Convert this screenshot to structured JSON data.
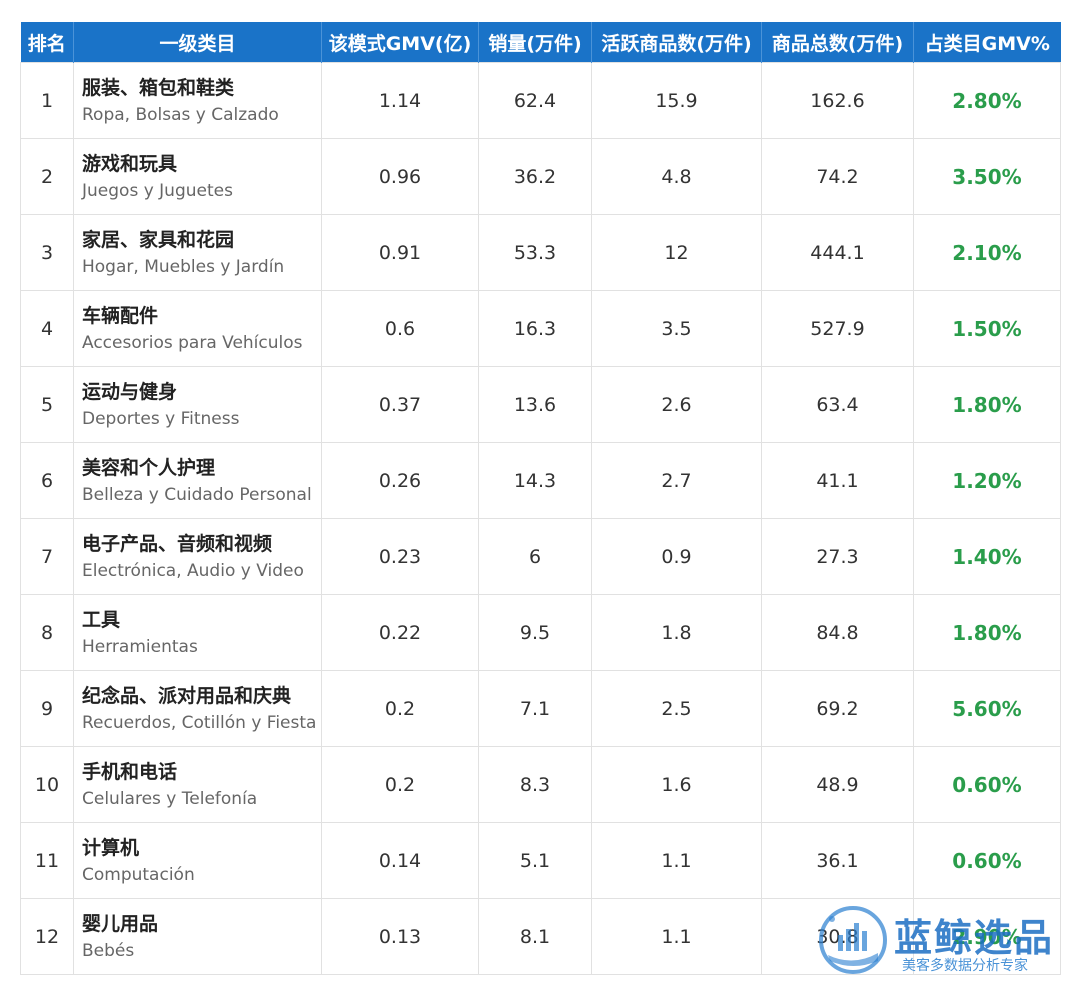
{
  "table": {
    "headers": [
      "排名",
      "一级类目",
      "该模式GMV(亿)",
      "销量(万件)",
      "活跃商品数(万件)",
      "商品总数(万件)",
      "占类目GMV%"
    ],
    "rows": [
      {
        "rank": "1",
        "zh": "服装、箱包和鞋类",
        "es": "Ropa, Bolsas y Calzado",
        "gmv": "1.14",
        "sales": "62.4",
        "active": "15.9",
        "total": "162.6",
        "pct": "2.80%"
      },
      {
        "rank": "2",
        "zh": "游戏和玩具",
        "es": "Juegos y Juguetes",
        "gmv": "0.96",
        "sales": "36.2",
        "active": "4.8",
        "total": "74.2",
        "pct": "3.50%"
      },
      {
        "rank": "3",
        "zh": "家居、家具和花园",
        "es": "Hogar, Muebles y Jardín",
        "gmv": "0.91",
        "sales": "53.3",
        "active": "12",
        "total": "444.1",
        "pct": "2.10%"
      },
      {
        "rank": "4",
        "zh": "车辆配件",
        "es": "Accesorios para Vehículos",
        "gmv": "0.6",
        "sales": "16.3",
        "active": "3.5",
        "total": "527.9",
        "pct": "1.50%"
      },
      {
        "rank": "5",
        "zh": "运动与健身",
        "es": "Deportes y Fitness",
        "gmv": "0.37",
        "sales": "13.6",
        "active": "2.6",
        "total": "63.4",
        "pct": "1.80%"
      },
      {
        "rank": "6",
        "zh": "美容和个人护理",
        "es": "Belleza y Cuidado Personal",
        "gmv": "0.26",
        "sales": "14.3",
        "active": "2.7",
        "total": "41.1",
        "pct": "1.20%"
      },
      {
        "rank": "7",
        "zh": "电子产品、音频和视频",
        "es": "Electrónica, Audio y Video",
        "gmv": "0.23",
        "sales": "6",
        "active": "0.9",
        "total": "27.3",
        "pct": "1.40%"
      },
      {
        "rank": "8",
        "zh": "工具",
        "es": "Herramientas",
        "gmv": "0.22",
        "sales": "9.5",
        "active": "1.8",
        "total": "84.8",
        "pct": "1.80%"
      },
      {
        "rank": "9",
        "zh": "纪念品、派对用品和庆典",
        "es": "Recuerdos, Cotillón y Fiesta",
        "gmv": "0.2",
        "sales": "7.1",
        "active": "2.5",
        "total": "69.2",
        "pct": "5.60%"
      },
      {
        "rank": "10",
        "zh": "手机和电话",
        "es": "Celulares y Telefonía",
        "gmv": "0.2",
        "sales": "8.3",
        "active": "1.6",
        "total": "48.9",
        "pct": "0.60%"
      },
      {
        "rank": "11",
        "zh": "计算机",
        "es": "Computación",
        "gmv": "0.14",
        "sales": "5.1",
        "active": "1.1",
        "total": "36.1",
        "pct": "0.60%"
      },
      {
        "rank": "12",
        "zh": "婴儿用品",
        "es": "Bebés",
        "gmv": "0.13",
        "sales": "8.1",
        "active": "1.1",
        "total": "30.8",
        "pct": "2.90%"
      }
    ]
  },
  "watermark": {
    "title": "蓝鲸选品",
    "subtitle": "美客多数据分析专家",
    "icon": "whale-logo-icon",
    "color": "#1d6fc4"
  },
  "colors": {
    "header_bg": "#1a73c8",
    "pct_text": "#2a9d4b"
  }
}
